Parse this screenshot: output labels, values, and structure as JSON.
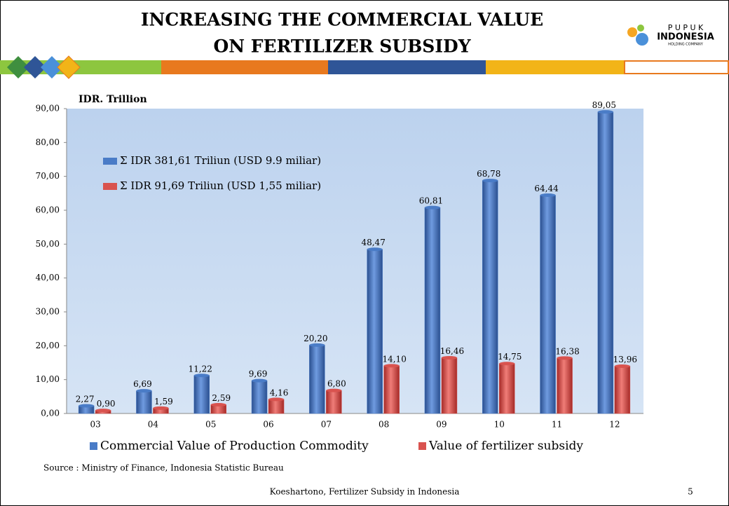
{
  "slide": {
    "title_line1": "INCREASING THE COMMERCIAL VALUE",
    "title_line2": "ON FERTILIZER SUBSIDY",
    "logo_top": "P U P U K",
    "logo_main": "INDONESIA",
    "logo_sub": "HOLDING COMPANY",
    "source": "Source : Ministry of Finance, Indonesia Statistic Bureau",
    "footer": "Koeshartono, Fertilizer Subsidy in Indonesia",
    "page_number": "5"
  },
  "chart_data": {
    "type": "bar",
    "y_axis_label": "IDR. Trillion",
    "annotations": [
      "Σ IDR 381,61 Triliun (USD 9.9 miliar)",
      "Σ IDR 91,69 Triliun (USD 1,55 miliar)"
    ],
    "categories": [
      "03",
      "04",
      "05",
      "06",
      "07",
      "08",
      "09",
      "10",
      "11",
      "12"
    ],
    "series": [
      {
        "name": "Commercial Value of Production Commodity",
        "color": "#4a7cc7",
        "values": [
          2.27,
          6.69,
          11.22,
          9.69,
          20.2,
          48.47,
          60.81,
          68.78,
          64.44,
          89.05
        ],
        "value_labels": [
          "2,27",
          "6,69",
          "11,22",
          "9,69",
          "20,20",
          "48,47",
          "60,81",
          "68,78",
          "64,44",
          "89,05"
        ]
      },
      {
        "name": "Value of fertilizer subsidy",
        "color": "#d9534f",
        "values": [
          0.9,
          1.59,
          2.59,
          4.16,
          6.8,
          14.1,
          16.46,
          14.75,
          16.38,
          13.96
        ],
        "value_labels": [
          "0,90",
          "1,59",
          "2,59",
          "4,16",
          "6,80",
          "14,10",
          "16,46",
          "14,75",
          "16,38",
          "13,96"
        ]
      }
    ],
    "ylim": [
      0,
      90
    ],
    "yticks": [
      {
        "value": 0,
        "label": "0,00"
      },
      {
        "value": 10,
        "label": "10,00"
      },
      {
        "value": 20,
        "label": "20,00"
      },
      {
        "value": 30,
        "label": "30,00"
      },
      {
        "value": 40,
        "label": "40,00"
      },
      {
        "value": 50,
        "label": "50,00"
      },
      {
        "value": 60,
        "label": "60,00"
      },
      {
        "value": 70,
        "label": "70,00"
      },
      {
        "value": 80,
        "label": "80,00"
      },
      {
        "value": 90,
        "label": "90,00"
      }
    ],
    "legend_position": "bottom"
  }
}
